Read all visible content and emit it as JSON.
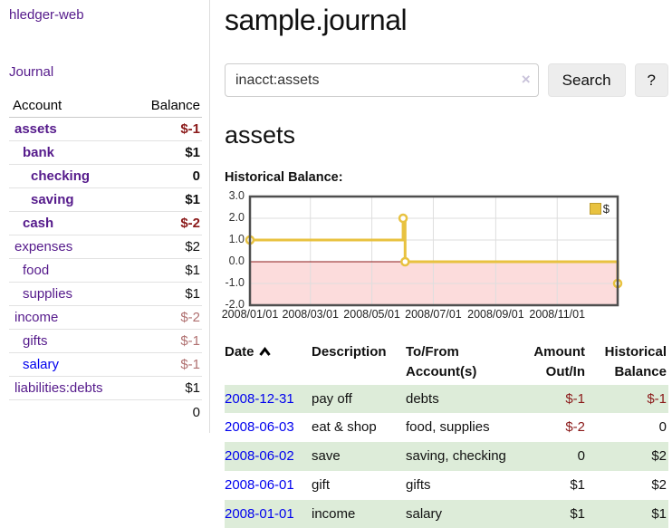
{
  "app": {
    "title": "hledger-web"
  },
  "sidebar": {
    "journal_link": "Journal",
    "table": {
      "account_header": "Account",
      "balance_header": "Balance",
      "rows": [
        {
          "account": "assets",
          "balance": "$-1",
          "indent": 0,
          "bold": true,
          "neg": "strong"
        },
        {
          "account": "bank",
          "balance": "$1",
          "indent": 1,
          "bold": true,
          "neg": null
        },
        {
          "account": "checking",
          "balance": "0",
          "indent": 2,
          "bold": true,
          "neg": null
        },
        {
          "account": "saving",
          "balance": "$1",
          "indent": 2,
          "bold": true,
          "neg": null
        },
        {
          "account": "cash",
          "balance": "$-2",
          "indent": 1,
          "bold": true,
          "neg": "strong"
        },
        {
          "account": "expenses",
          "balance": "$2",
          "indent": 0,
          "bold": false,
          "neg": null
        },
        {
          "account": "food",
          "balance": "$1",
          "indent": 1,
          "bold": false,
          "neg": null
        },
        {
          "account": "supplies",
          "balance": "$1",
          "indent": 1,
          "bold": false,
          "neg": null
        },
        {
          "account": "income",
          "balance": "$-2",
          "indent": 0,
          "bold": false,
          "neg": "soft"
        },
        {
          "account": "gifts",
          "balance": "$-1",
          "indent": 1,
          "bold": false,
          "neg": "soft"
        },
        {
          "account": "salary",
          "balance": "$-1",
          "indent": 1,
          "bold": false,
          "neg": "soft",
          "unvisited": true
        },
        {
          "account": "liabilities:debts",
          "balance": "$1",
          "indent": 0,
          "bold": false,
          "neg": null
        }
      ],
      "total": "0"
    }
  },
  "main": {
    "title": "sample.journal",
    "search": {
      "value": "inacct:assets",
      "clear_icon": "×",
      "button_label": "Search",
      "help_label": "?"
    },
    "account_heading": "assets",
    "chart_label": "Historical Balance:"
  },
  "chart_data": {
    "type": "line",
    "style": "step",
    "title": "Historical Balance:",
    "series": [
      {
        "name": "$",
        "points": [
          [
            "2008-01-01",
            1
          ],
          [
            "2008-06-01",
            2
          ],
          [
            "2008-06-03",
            0
          ],
          [
            "2008-12-31",
            -1
          ]
        ]
      }
    ],
    "x_range": [
      "2008-01-01",
      "2008-12-31"
    ],
    "x_ticks": [
      "2008/01/01",
      "2008/03/01",
      "2008/05/01",
      "2008/07/01",
      "2008/09/01",
      "2008/11/01"
    ],
    "y_ticks": [
      3.0,
      2.0,
      1.0,
      0.0,
      -1.0,
      -2.0
    ],
    "ylim": [
      -2,
      3
    ],
    "grid": true,
    "legend": {
      "label": "$",
      "position": "top-right"
    },
    "negative_region_shaded": true
  },
  "transactions": {
    "headers": {
      "date": "Date",
      "description": "Description",
      "accounts_line1": "To/From",
      "accounts_line2": "Account(s)",
      "amount_line1": "Amount",
      "amount_line2": "Out/In",
      "balance_line1": "Historical",
      "balance_line2": "Balance"
    },
    "rows": [
      {
        "date": "2008-12-31",
        "description": "pay off",
        "accounts": "debts",
        "amount": "$-1",
        "balance": "$-1",
        "amount_neg": true,
        "balance_neg": true
      },
      {
        "date": "2008-06-03",
        "description": "eat & shop",
        "accounts": "food, supplies",
        "amount": "$-2",
        "balance": "0",
        "amount_neg": true,
        "balance_neg": false
      },
      {
        "date": "2008-06-02",
        "description": "save",
        "accounts": "saving, checking",
        "amount": "0",
        "balance": "$2",
        "amount_neg": false,
        "balance_neg": false
      },
      {
        "date": "2008-06-01",
        "description": "gift",
        "accounts": "gifts",
        "amount": "$1",
        "balance": "$2",
        "amount_neg": false,
        "balance_neg": false
      },
      {
        "date": "2008-01-01",
        "description": "income",
        "accounts": "salary",
        "amount": "$1",
        "balance": "$1",
        "amount_neg": false,
        "balance_neg": false
      }
    ]
  },
  "colors": {
    "link_purple": "#551a8b",
    "link_blue": "#0000ee",
    "negative_strong": "#8b1a1a",
    "negative_soft": "#b07070",
    "row_green": "#ddecd9",
    "chart_line": "#e8c240",
    "chart_negative_fill": "#fcdcdc",
    "chart_zero_line": "#8b1a1a",
    "chart_border": "#4f4f4f",
    "chart_grid": "#dedede"
  }
}
